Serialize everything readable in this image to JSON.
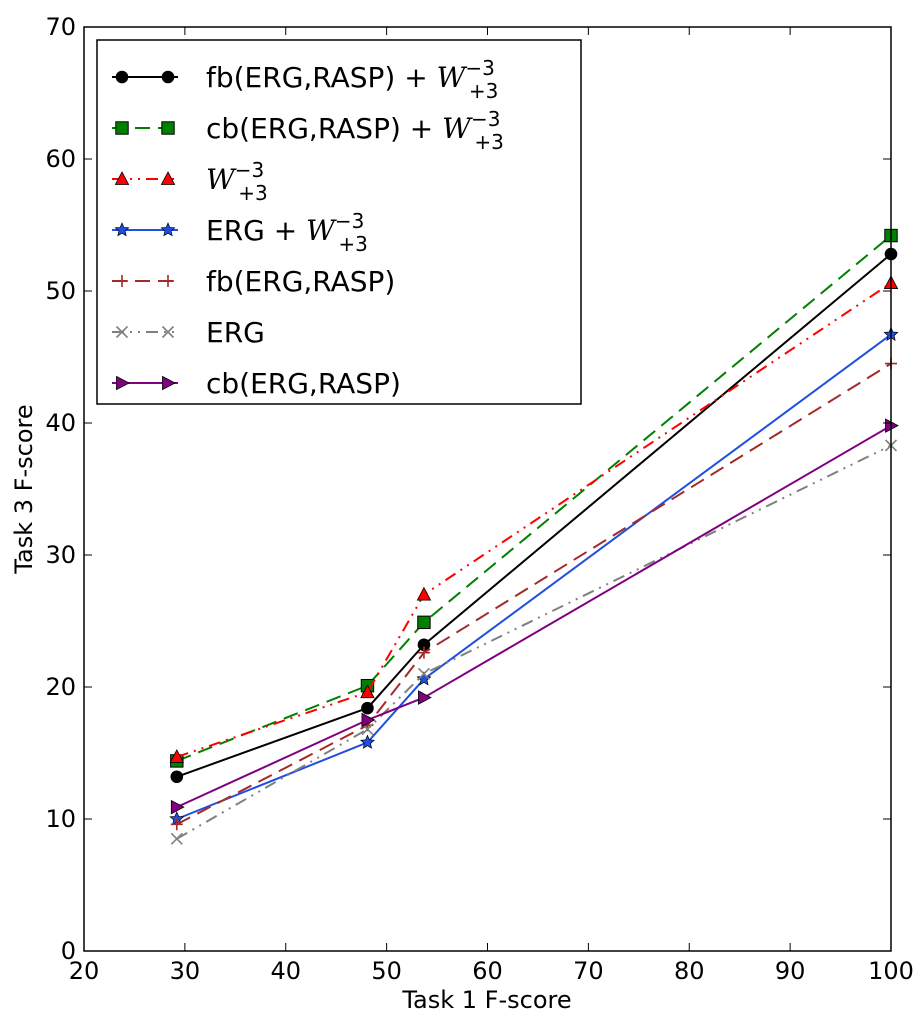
{
  "chart_data": {
    "type": "line",
    "title": "",
    "xlabel": "Task 1 F-score",
    "ylabel": "Task 3 F-score",
    "xlim": [
      20,
      100
    ],
    "ylim": [
      0,
      70
    ],
    "x_ticks": [
      20,
      30,
      40,
      50,
      60,
      70,
      80,
      90,
      100
    ],
    "y_ticks": [
      0,
      10,
      20,
      30,
      40,
      50,
      60,
      70
    ],
    "x_tick_labels": [
      "20",
      "30",
      "40",
      "50",
      "60",
      "70",
      "80",
      "90",
      "100"
    ],
    "y_tick_labels": [
      "0",
      "10",
      "20",
      "30",
      "40",
      "50",
      "60",
      "70"
    ],
    "grid": false,
    "legend_position": "top-left",
    "series": [
      {
        "name": "fb(ERG,RASP) + W_{+3}^{-3}",
        "legend_prefix": "fb(ERG,RASP) + ",
        "legend_math": {
          "base": "W",
          "sup": "−3",
          "sub": "+3"
        },
        "color": "#000000",
        "line_style": "solid",
        "marker": "circle",
        "x": [
          29.2,
          48.1,
          53.7,
          100
        ],
        "y": [
          13.2,
          18.4,
          23.2,
          52.8
        ]
      },
      {
        "name": "cb(ERG,RASP) + W_{+3}^{-3}",
        "legend_prefix": "cb(ERG,RASP) + ",
        "legend_math": {
          "base": "W",
          "sup": "−3",
          "sub": "+3"
        },
        "color": "#008000",
        "line_style": "dashed",
        "marker": "square",
        "x": [
          29.2,
          48.1,
          53.7,
          100
        ],
        "y": [
          14.4,
          20.1,
          24.9,
          54.2
        ]
      },
      {
        "name": "W_{+3}^{-3}",
        "legend_prefix": "",
        "legend_math": {
          "base": "W",
          "sup": "−3",
          "sub": "+3"
        },
        "color": "#ff0000",
        "line_style": "dashdotdot",
        "marker": "triangle-up",
        "x": [
          29.2,
          48.1,
          53.7,
          100
        ],
        "y": [
          14.7,
          19.6,
          27.0,
          50.6
        ]
      },
      {
        "name": "ERG + W_{+3}^{-3}",
        "legend_prefix": "ERG + ",
        "legend_math": {
          "base": "W",
          "sup": "−3",
          "sub": "+3"
        },
        "color": "#1f4fe0",
        "line_style": "solid",
        "marker": "star",
        "x": [
          29.2,
          48.1,
          53.7,
          100
        ],
        "y": [
          10.0,
          15.8,
          20.6,
          46.7
        ]
      },
      {
        "name": "fb(ERG,RASP)",
        "legend_prefix": "fb(ERG,RASP)",
        "color": "#a52a2a",
        "line_style": "dashed",
        "marker": "plus",
        "x": [
          29.2,
          48.1,
          53.7,
          100
        ],
        "y": [
          9.6,
          17.1,
          22.6,
          44.5
        ]
      },
      {
        "name": "ERG",
        "legend_prefix": "ERG",
        "color": "#808080",
        "line_style": "dashdotdot",
        "marker": "x",
        "x": [
          29.2,
          48.1,
          53.7,
          100
        ],
        "y": [
          8.5,
          16.8,
          21.0,
          38.3
        ]
      },
      {
        "name": "cb(ERG,RASP)",
        "legend_prefix": "cb(ERG,RASP)",
        "color": "#800080",
        "line_style": "solid",
        "marker": "triangle-right",
        "x": [
          29.2,
          48.1,
          53.7,
          100
        ],
        "y": [
          10.9,
          17.5,
          19.2,
          39.8
        ]
      }
    ]
  }
}
